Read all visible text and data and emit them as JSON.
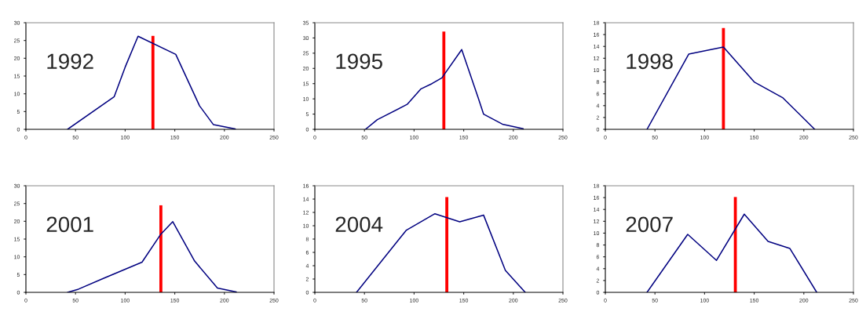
{
  "chart_data": [
    {
      "type": "line",
      "annotations": [
        "1992"
      ],
      "xlim": [
        0,
        250
      ],
      "xticks": [
        0,
        50,
        100,
        150,
        200,
        250
      ],
      "ylim": [
        0,
        30
      ],
      "yticks": [
        0,
        5,
        10,
        15,
        20,
        25,
        30
      ],
      "series": [
        {
          "color": "#000080",
          "x": [
            42,
            89,
            100,
            113,
            151,
            175,
            189,
            211
          ],
          "values": [
            0,
            9.2,
            17.5,
            26.2,
            21.1,
            6.6,
            1.3,
            0.1
          ]
        },
        {
          "type": "bar",
          "color": "#ff0000",
          "x": [
            128
          ],
          "values": [
            26.3
          ]
        }
      ]
    },
    {
      "type": "line",
      "annotations": [
        "1995"
      ],
      "xlim": [
        0,
        250
      ],
      "xticks": [
        0,
        50,
        100,
        150,
        200,
        250
      ],
      "ylim": [
        0,
        35
      ],
      "yticks": [
        0,
        5,
        10,
        15,
        20,
        25,
        30,
        35
      ],
      "series": [
        {
          "color": "#000080",
          "x": [
            51,
            63,
            93,
            107,
            118,
            128,
            148,
            165,
            170,
            189,
            210
          ],
          "values": [
            0,
            3.2,
            8.2,
            13.3,
            15,
            16.9,
            26.2,
            10,
            5,
            1.7,
            0.2
          ]
        },
        {
          "type": "bar",
          "color": "#ff0000",
          "x": [
            130
          ],
          "values": [
            32.1
          ]
        }
      ]
    },
    {
      "type": "line",
      "annotations": [
        "1998"
      ],
      "xlim": [
        0,
        250
      ],
      "xticks": [
        0,
        50,
        100,
        150,
        200,
        250
      ],
      "ylim": [
        0,
        18
      ],
      "yticks": [
        0,
        2,
        4,
        6,
        8,
        10,
        12,
        14,
        16,
        18
      ],
      "series": [
        {
          "color": "#000080",
          "x": [
            42,
            84,
            119,
            150,
            179,
            211
          ],
          "values": [
            0,
            12.7,
            13.9,
            8,
            5.3,
            0
          ]
        },
        {
          "type": "bar",
          "color": "#ff0000",
          "x": [
            119
          ],
          "values": [
            17.1
          ]
        }
      ]
    },
    {
      "type": "line",
      "annotations": [
        "2001"
      ],
      "xlim": [
        0,
        250
      ],
      "xticks": [
        0,
        50,
        100,
        150,
        200,
        250
      ],
      "ylim": [
        0,
        30
      ],
      "yticks": [
        0,
        5,
        10,
        15,
        20,
        25,
        30
      ],
      "series": [
        {
          "color": "#000080",
          "x": [
            42,
            53,
            78,
            117,
            136,
            148,
            170,
            193,
            212
          ],
          "values": [
            0,
            0.9,
            3.9,
            8.5,
            16.4,
            19.9,
            8.8,
            1.2,
            0.1
          ]
        },
        {
          "type": "bar",
          "color": "#ff0000",
          "x": [
            136
          ],
          "values": [
            24.5
          ]
        }
      ]
    },
    {
      "type": "line",
      "annotations": [
        "2004"
      ],
      "xlim": [
        0,
        250
      ],
      "xticks": [
        0,
        50,
        100,
        150,
        200,
        250
      ],
      "ylim": [
        0,
        16
      ],
      "yticks": [
        0,
        2,
        4,
        6,
        8,
        10,
        12,
        14,
        16
      ],
      "series": [
        {
          "color": "#000080",
          "x": [
            42,
            92,
            121,
            146,
            170,
            192,
            212
          ],
          "values": [
            0,
            9.3,
            11.8,
            10.6,
            11.6,
            3.3,
            0
          ]
        },
        {
          "type": "bar",
          "color": "#ff0000",
          "x": [
            133
          ],
          "values": [
            14.3
          ]
        }
      ]
    },
    {
      "type": "line",
      "annotations": [
        "2007"
      ],
      "xlim": [
        0,
        250
      ],
      "xticks": [
        0,
        50,
        100,
        150,
        200,
        250
      ],
      "ylim": [
        0,
        18
      ],
      "yticks": [
        0,
        2,
        4,
        6,
        8,
        10,
        12,
        14,
        16,
        18
      ],
      "series": [
        {
          "color": "#000080",
          "x": [
            42,
            83,
            112,
            140,
            164,
            186,
            213
          ],
          "values": [
            0,
            9.8,
            5.4,
            13.2,
            8.6,
            7.4,
            0
          ]
        },
        {
          "type": "bar",
          "color": "#ff0000",
          "x": [
            131
          ],
          "values": [
            16.1
          ]
        }
      ]
    }
  ]
}
